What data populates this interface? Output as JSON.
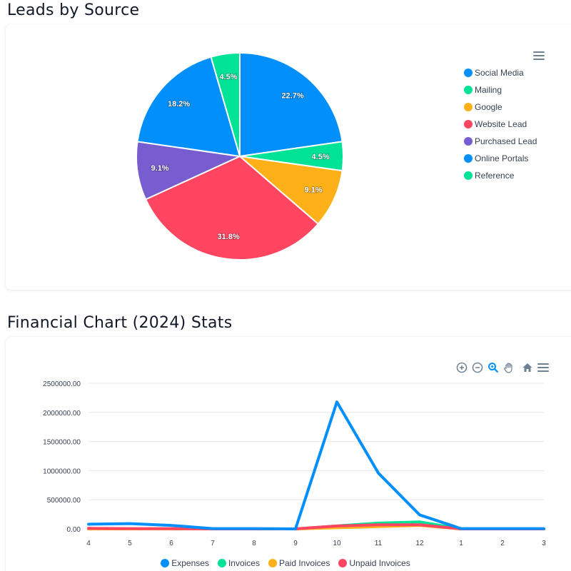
{
  "section1": {
    "title": "Leads by Source"
  },
  "section2": {
    "title": "Financial Chart (2024) Stats"
  },
  "chart_data": [
    {
      "type": "pie",
      "labels": [
        "Social Media",
        "Mailing",
        "Google",
        "Website Lead",
        "Purchased Lead",
        "Online Portals",
        "Reference"
      ],
      "values": [
        22.7,
        4.5,
        9.1,
        31.8,
        9.1,
        18.2,
        4.5
      ],
      "data_labels": [
        "22.7%",
        "4.5%",
        "9.1%",
        "31.8%",
        "9.1%",
        "18.2%",
        "4.5%"
      ],
      "colors": [
        "#008ffb",
        "#00e396",
        "#feb019",
        "#ff4560",
        "#775dd0",
        "#008ffb",
        "#00e396"
      ],
      "legend_position": "right"
    },
    {
      "type": "line",
      "categories": [
        "4",
        "5",
        "6",
        "7",
        "8",
        "9",
        "10",
        "11",
        "12",
        "1",
        "2",
        "3"
      ],
      "series": [
        {
          "name": "Expenses",
          "color": "#008ffb",
          "values": [
            80000,
            90000,
            60000,
            5000,
            5000,
            0,
            2180000,
            960000,
            240000,
            5000,
            5000,
            5000
          ]
        },
        {
          "name": "Invoices",
          "color": "#00e396",
          "values": [
            0,
            0,
            0,
            0,
            0,
            0,
            50000,
            100000,
            120000,
            0,
            0,
            0
          ]
        },
        {
          "name": "Paid Invoices",
          "color": "#feb019",
          "values": [
            0,
            0,
            0,
            0,
            0,
            0,
            20000,
            40000,
            60000,
            0,
            0,
            0
          ]
        },
        {
          "name": "Unpaid Invoices",
          "color": "#ff4560",
          "values": [
            10000,
            5000,
            5000,
            0,
            0,
            0,
            50000,
            70000,
            70000,
            0,
            0,
            0
          ]
        }
      ],
      "y_ticks": [
        "2500000.00",
        "2000000.00",
        "1500000.00",
        "1000000.00",
        "500000.00",
        "0.00"
      ],
      "ylim": [
        0,
        2500000
      ],
      "grid": true,
      "legend_position": "bottom"
    }
  ],
  "toolbar": {
    "icons": [
      "zoom-in-icon",
      "zoom-out-icon",
      "magnifier-icon",
      "pan-hand-icon",
      "home-icon",
      "menu-icon"
    ]
  }
}
